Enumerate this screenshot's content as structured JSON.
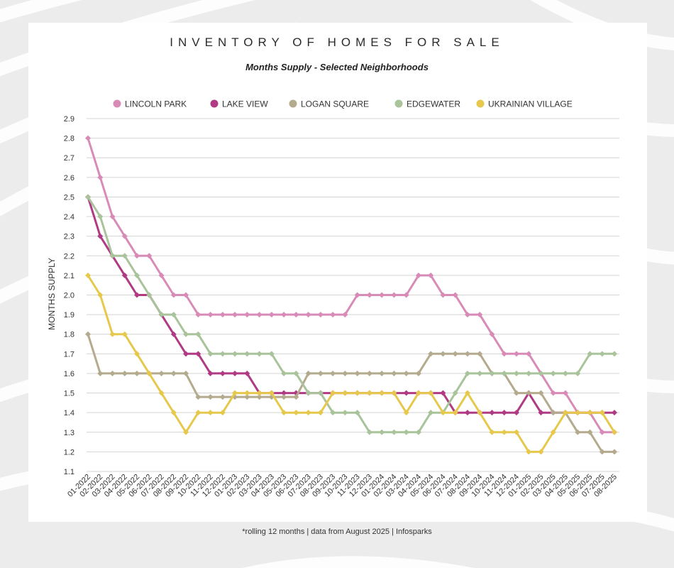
{
  "title": "INVENTORY OF HOMES FOR SALE",
  "subtitle": "Months Supply - Selected Neighborhoods",
  "footnote": "*rolling 12 months | data from August 2025 | Infosparks",
  "chart_data": {
    "type": "line",
    "title": "INVENTORY OF HOMES FOR SALE",
    "subtitle": "Months Supply - Selected Neighborhoods",
    "xlabel": "",
    "ylabel": "MONTHS SUPPLY",
    "ylim": [
      1.1,
      2.9
    ],
    "yticks": [
      "1.1",
      "1.2",
      "1.3",
      "1.4",
      "1.5",
      "1.6",
      "1.7",
      "1.8",
      "1.9",
      "2.0",
      "2.1",
      "2.2",
      "2.3",
      "2.4",
      "2.5",
      "2.6",
      "2.7",
      "2.8",
      "2.9"
    ],
    "grid": true,
    "legend_position": "top",
    "categories": [
      "01-2022",
      "02-2022",
      "03-2022",
      "04-2022",
      "05-2022",
      "06-2022",
      "07-2022",
      "08-2022",
      "09-2022",
      "10-2022",
      "11-2022",
      "12-2022",
      "01-2023",
      "02-2023",
      "03-2023",
      "04-2023",
      "05-2023",
      "06-2023",
      "07-2023",
      "08-2023",
      "09-2023",
      "10-2023",
      "11-2023",
      "12-2023",
      "01-2024",
      "02-2024",
      "03-2024",
      "04-2024",
      "05-2024",
      "06-2024",
      "07-2024",
      "08-2024",
      "09-2024",
      "10-2024",
      "11-2024",
      "12-2024",
      "01-2025",
      "02-2025",
      "03-2025",
      "04-2025",
      "05-2025",
      "06-2025",
      "07-2025",
      "08-2025"
    ],
    "series": [
      {
        "name": "LINCOLN PARK",
        "color": "#d98bb8",
        "values": [
          2.8,
          2.6,
          2.4,
          2.3,
          2.2,
          2.2,
          2.1,
          2.0,
          2.0,
          1.9,
          1.9,
          1.9,
          1.9,
          1.9,
          1.9,
          1.9,
          1.9,
          1.9,
          1.9,
          1.9,
          1.9,
          1.9,
          2.0,
          2.0,
          2.0,
          2.0,
          2.0,
          2.1,
          2.1,
          2.0,
          2.0,
          1.9,
          1.9,
          1.8,
          1.7,
          1.7,
          1.7,
          1.6,
          1.5,
          1.5,
          1.4,
          1.4,
          1.3,
          1.3
        ]
      },
      {
        "name": "LAKE VIEW",
        "color": "#b03a84",
        "values": [
          2.5,
          2.3,
          2.2,
          2.1,
          2.0,
          2.0,
          1.9,
          1.8,
          1.7,
          1.7,
          1.6,
          1.6,
          1.6,
          1.6,
          1.5,
          1.5,
          1.5,
          1.5,
          1.5,
          1.5,
          1.5,
          1.5,
          1.5,
          1.5,
          1.5,
          1.5,
          1.5,
          1.5,
          1.5,
          1.5,
          1.4,
          1.4,
          1.4,
          1.4,
          1.4,
          1.4,
          1.5,
          1.4,
          1.4,
          1.4,
          1.4,
          1.4,
          1.4,
          1.4
        ]
      },
      {
        "name": "LOGAN SQUARE",
        "color": "#b4aa8e",
        "values": [
          1.8,
          1.6,
          1.6,
          1.6,
          1.6,
          1.6,
          1.6,
          1.6,
          1.6,
          1.48,
          1.48,
          1.48,
          1.48,
          1.48,
          1.48,
          1.48,
          1.48,
          1.48,
          1.6,
          1.6,
          1.6,
          1.6,
          1.6,
          1.6,
          1.6,
          1.6,
          1.6,
          1.6,
          1.7,
          1.7,
          1.7,
          1.7,
          1.7,
          1.6,
          1.6,
          1.5,
          1.5,
          1.5,
          1.4,
          1.4,
          1.3,
          1.3,
          1.2,
          1.2
        ]
      },
      {
        "name": "EDGEWATER",
        "color": "#a9c39a",
        "values": [
          2.5,
          2.4,
          2.2,
          2.2,
          2.1,
          2.0,
          1.9,
          1.9,
          1.8,
          1.8,
          1.7,
          1.7,
          1.7,
          1.7,
          1.7,
          1.7,
          1.6,
          1.6,
          1.5,
          1.5,
          1.4,
          1.4,
          1.4,
          1.3,
          1.3,
          1.3,
          1.3,
          1.3,
          1.4,
          1.4,
          1.5,
          1.6,
          1.6,
          1.6,
          1.6,
          1.6,
          1.6,
          1.6,
          1.6,
          1.6,
          1.6,
          1.7,
          1.7,
          1.7
        ]
      },
      {
        "name": "UKRAINIAN VILLAGE",
        "color": "#e6c84d",
        "values": [
          2.1,
          2.0,
          1.8,
          1.8,
          1.7,
          1.6,
          1.5,
          1.4,
          1.3,
          1.4,
          1.4,
          1.4,
          1.5,
          1.5,
          1.5,
          1.5,
          1.4,
          1.4,
          1.4,
          1.4,
          1.5,
          1.5,
          1.5,
          1.5,
          1.5,
          1.5,
          1.4,
          1.5,
          1.5,
          1.4,
          1.4,
          1.5,
          1.4,
          1.3,
          1.3,
          1.3,
          1.2,
          1.2,
          1.3,
          1.4,
          1.4,
          1.4,
          1.4,
          1.3
        ]
      }
    ]
  }
}
